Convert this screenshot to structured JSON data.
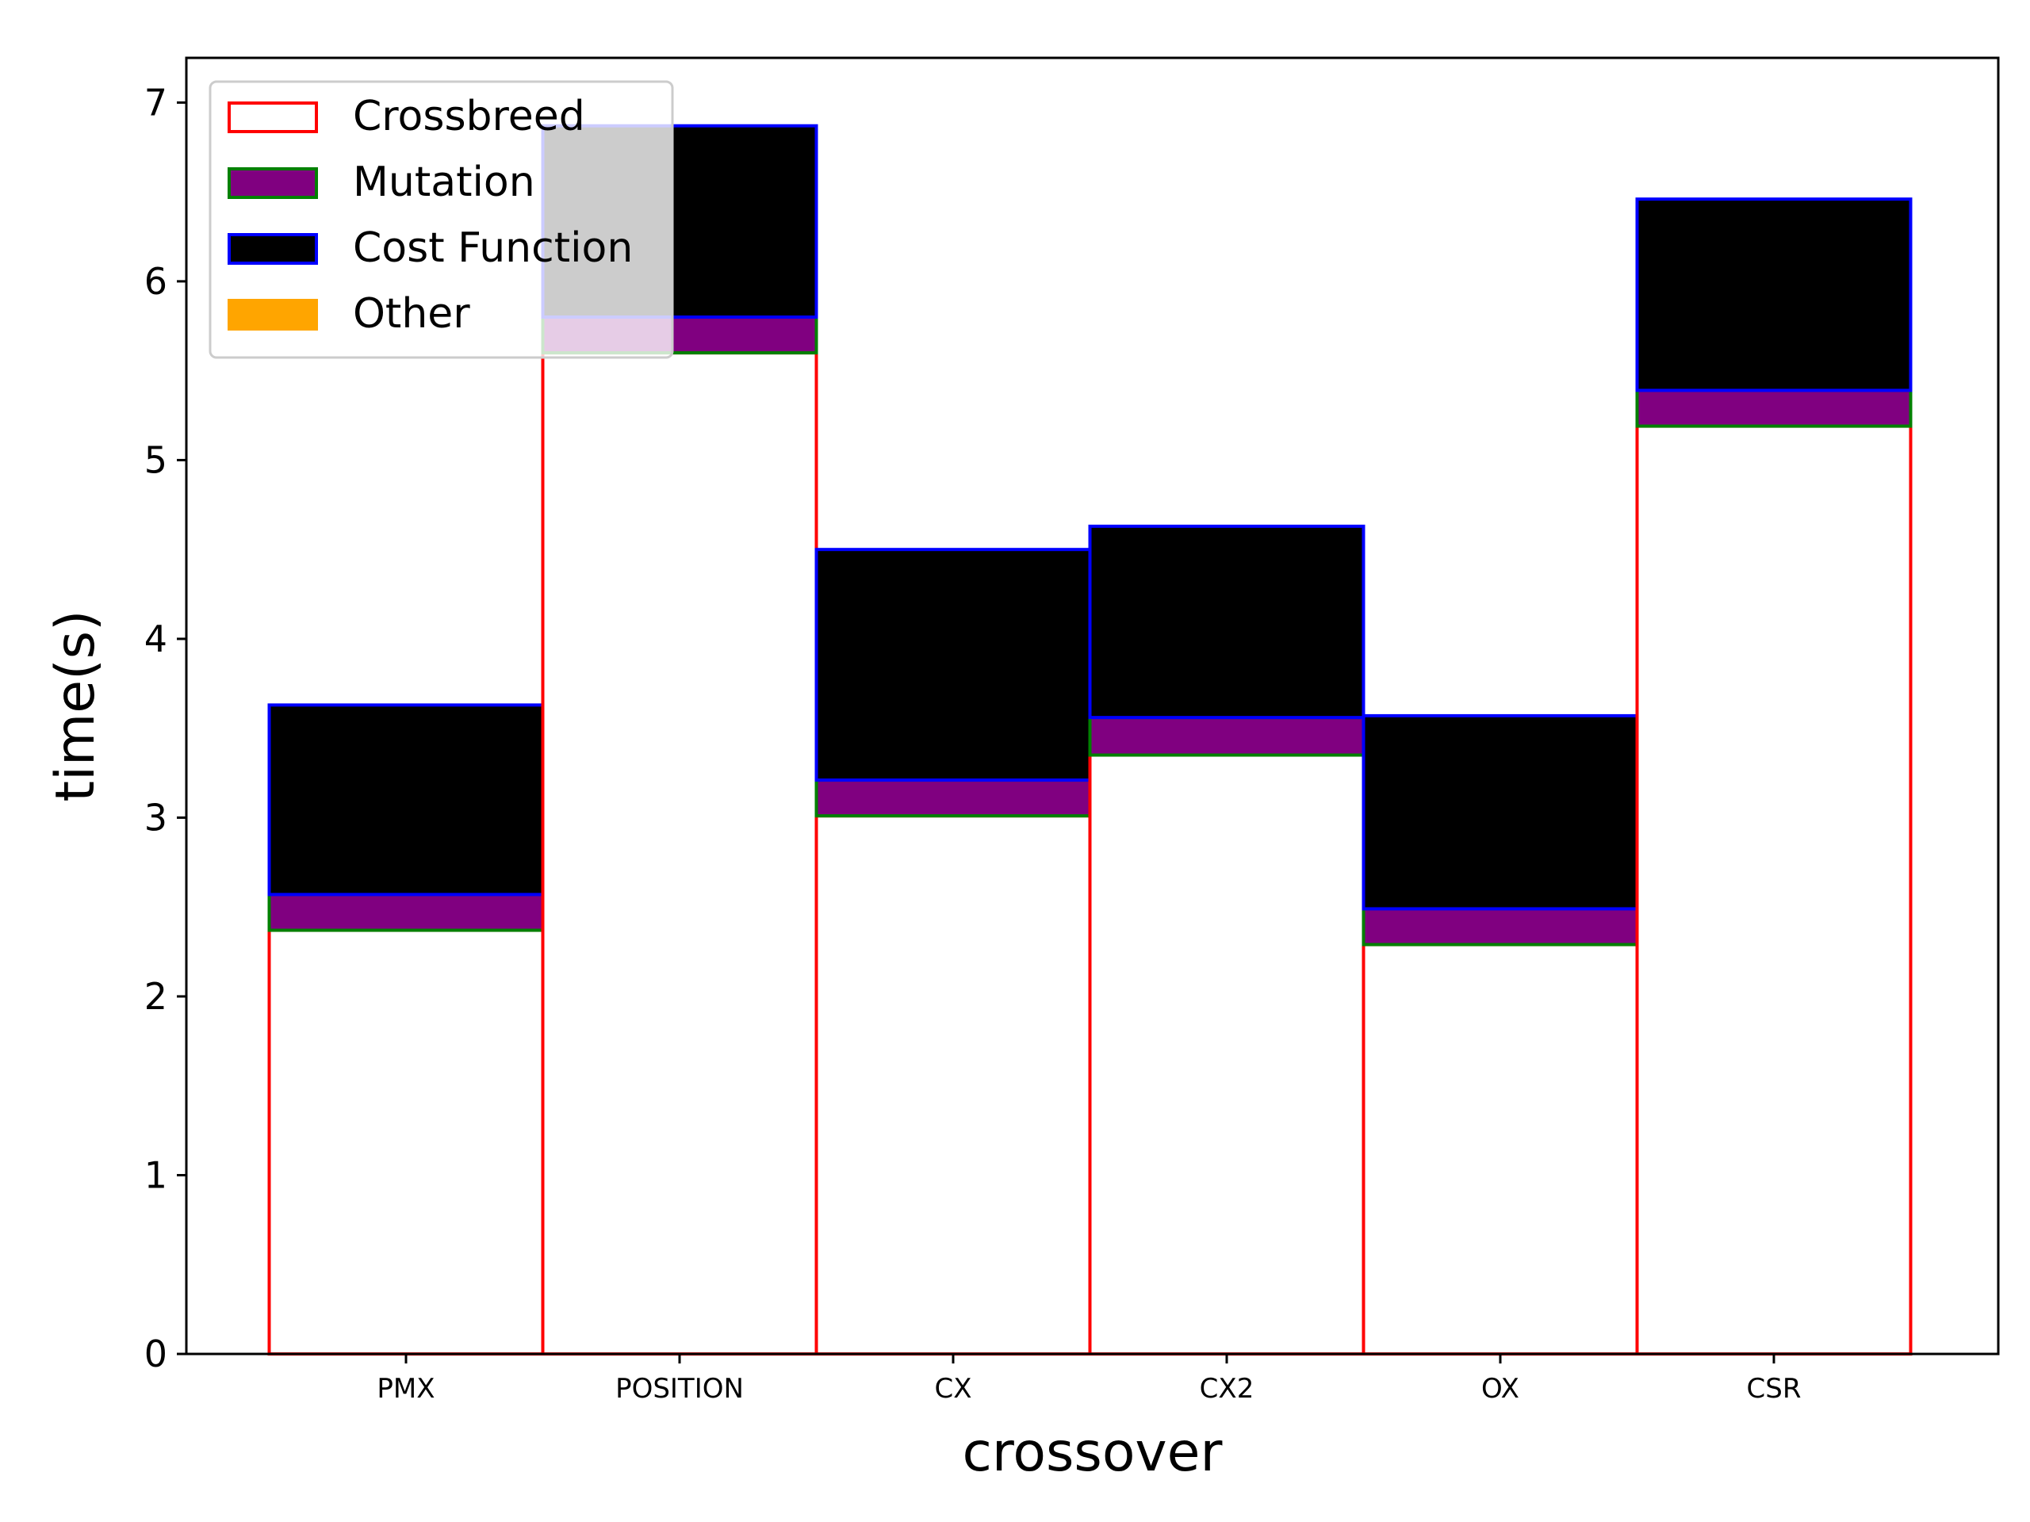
{
  "chart_data": {
    "type": "bar",
    "stacked": true,
    "xlabel": "crossover",
    "ylabel": "time(s)",
    "ylim": [
      0,
      7.25
    ],
    "yticks": [
      0,
      1,
      2,
      3,
      4,
      5,
      6,
      7
    ],
    "categories": [
      "PMX",
      "POSITION",
      "CX",
      "CX2",
      "OX",
      "CSR"
    ],
    "series": [
      {
        "name": "Crossbreed",
        "fill": "#ffffff",
        "edge": "#ff0000",
        "values": [
          2.37,
          5.6,
          3.01,
          3.35,
          2.29,
          5.19
        ]
      },
      {
        "name": "Mutation",
        "fill": "#800080",
        "edge": "#008000",
        "values": [
          0.2,
          0.2,
          0.2,
          0.21,
          0.2,
          0.2
        ]
      },
      {
        "name": "Cost Function",
        "fill": "#000000",
        "edge": "#0000ff",
        "values": [
          1.06,
          1.07,
          1.29,
          1.07,
          1.08,
          1.07
        ]
      },
      {
        "name": "Other",
        "fill": "#ffa500",
        "edge": "#ffa500",
        "values": [
          0,
          0,
          0,
          0,
          0,
          0
        ]
      }
    ],
    "legend_position": "top-left",
    "grid": false
  }
}
